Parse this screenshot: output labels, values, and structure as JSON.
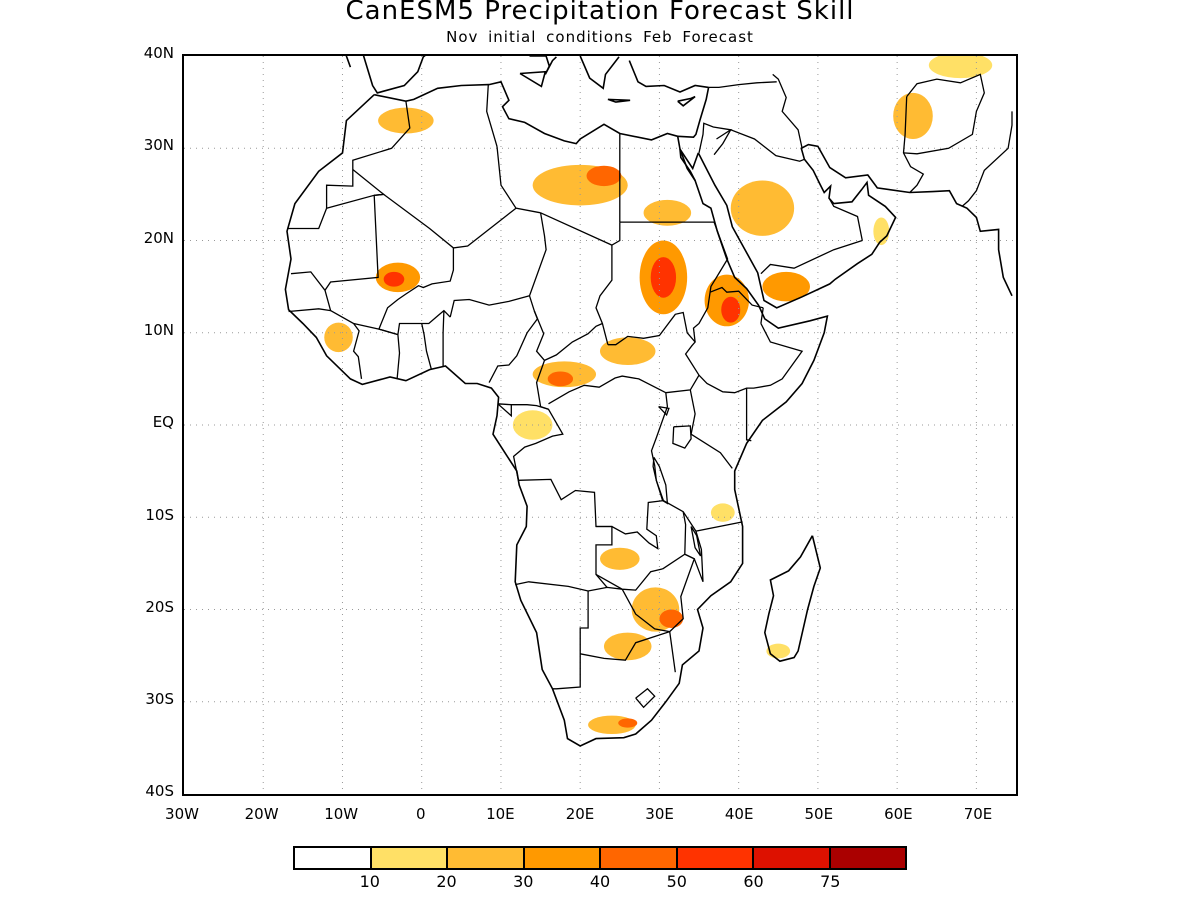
{
  "title": "CanESM5 Precipitation Forecast Skill",
  "subtitle": "Nov initial conditions  Feb Forecast",
  "lat_labels": [
    "40N",
    "30N",
    "20N",
    "10N",
    "EQ",
    "10S",
    "20S",
    "30S",
    "40S"
  ],
  "lon_labels": [
    "30W",
    "20W",
    "10W",
    "0",
    "10E",
    "20E",
    "30E",
    "40E",
    "50E",
    "60E",
    "70E"
  ],
  "extent": {
    "lon_min": -30,
    "lon_max": 75,
    "lat_min": -40,
    "lat_max": 40
  },
  "colorbar": {
    "colors": [
      "#ffffff",
      "#ffe066",
      "#ffbb33",
      "#ff9900",
      "#ff6600",
      "#ff3300",
      "#dd1100",
      "#aa0000"
    ],
    "labels": [
      "10",
      "20",
      "30",
      "40",
      "50",
      "60",
      "75"
    ]
  },
  "skill_regions": [
    {
      "name": "southern-morocco",
      "lon": -2,
      "lat": 33,
      "rx": 3.5,
      "ry": 1.4,
      "level": 2
    },
    {
      "name": "libya-south",
      "lon": 20,
      "lat": 26,
      "rx": 6,
      "ry": 2.2,
      "level": 2
    },
    {
      "name": "libya-core",
      "lon": 23,
      "lat": 27,
      "rx": 2.2,
      "ry": 1.1,
      "level": 4
    },
    {
      "name": "egypt-sudan-border",
      "lon": 31,
      "lat": 23,
      "rx": 3,
      "ry": 1.4,
      "level": 2
    },
    {
      "name": "mali-north",
      "lon": -3,
      "lat": 16,
      "rx": 2.8,
      "ry": 1.6,
      "level": 3
    },
    {
      "name": "mali-core",
      "lon": -3.5,
      "lat": 15.8,
      "rx": 1.3,
      "ry": 0.8,
      "level": 5
    },
    {
      "name": "sudan-west",
      "lon": 30.5,
      "lat": 16,
      "rx": 3,
      "ry": 4,
      "level": 3
    },
    {
      "name": "sudan-core",
      "lon": 30.5,
      "lat": 16,
      "rx": 1.6,
      "ry": 2.2,
      "level": 5
    },
    {
      "name": "ethiopia-north",
      "lon": 38.5,
      "lat": 13.5,
      "rx": 2.8,
      "ry": 2.8,
      "level": 3
    },
    {
      "name": "ethiopia-core",
      "lon": 39,
      "lat": 12.5,
      "rx": 1.2,
      "ry": 1.4,
      "level": 5
    },
    {
      "name": "yemen",
      "lon": 46,
      "lat": 15,
      "rx": 3,
      "ry": 1.6,
      "level": 3
    },
    {
      "name": "saudi-central",
      "lon": 43,
      "lat": 23.5,
      "rx": 4,
      "ry": 3,
      "level": 2
    },
    {
      "name": "iran-south",
      "lon": 62,
      "lat": 33.5,
      "rx": 2.5,
      "ry": 2.5,
      "level": 2
    },
    {
      "name": "iran-north",
      "lon": 68,
      "lat": 39,
      "rx": 4,
      "ry": 1.4,
      "level": 1
    },
    {
      "name": "guinea-coast",
      "lon": -10.5,
      "lat": 9.5,
      "rx": 1.8,
      "ry": 1.6,
      "level": 2
    },
    {
      "name": "cameroon",
      "lon": 18,
      "lat": 5.5,
      "rx": 4,
      "ry": 1.4,
      "level": 2
    },
    {
      "name": "cameroon-core",
      "lon": 17.5,
      "lat": 5,
      "rx": 1.6,
      "ry": 0.8,
      "level": 4
    },
    {
      "name": "car-south-sudan",
      "lon": 26,
      "lat": 8,
      "rx": 3.5,
      "ry": 1.5,
      "level": 2
    },
    {
      "name": "gabon-congo",
      "lon": 14,
      "lat": 0,
      "rx": 2.5,
      "ry": 1.6,
      "level": 1
    },
    {
      "name": "tanzania-south",
      "lon": 38,
      "lat": -9.5,
      "rx": 1.5,
      "ry": 1,
      "level": 1
    },
    {
      "name": "zambia",
      "lon": 25,
      "lat": -14.5,
      "rx": 2.5,
      "ry": 1.2,
      "level": 2
    },
    {
      "name": "zimbabwe",
      "lon": 29.5,
      "lat": -20,
      "rx": 3,
      "ry": 2.4,
      "level": 2
    },
    {
      "name": "zimbabwe-core",
      "lon": 31.5,
      "lat": -21,
      "rx": 1.5,
      "ry": 1,
      "level": 4
    },
    {
      "name": "botswana",
      "lon": 26,
      "lat": -24,
      "rx": 3,
      "ry": 1.5,
      "level": 2
    },
    {
      "name": "south-africa-south",
      "lon": 24,
      "lat": -32.5,
      "rx": 3,
      "ry": 1,
      "level": 2
    },
    {
      "name": "south-africa-core",
      "lon": 26,
      "lat": -32.3,
      "rx": 1.2,
      "ry": 0.5,
      "level": 4
    },
    {
      "name": "madagascar-south",
      "lon": 45,
      "lat": -24.5,
      "rx": 1.5,
      "ry": 0.8,
      "level": 1
    },
    {
      "name": "oman-coast",
      "lon": 58,
      "lat": 21,
      "rx": 1,
      "ry": 1.5,
      "level": 1
    }
  ]
}
